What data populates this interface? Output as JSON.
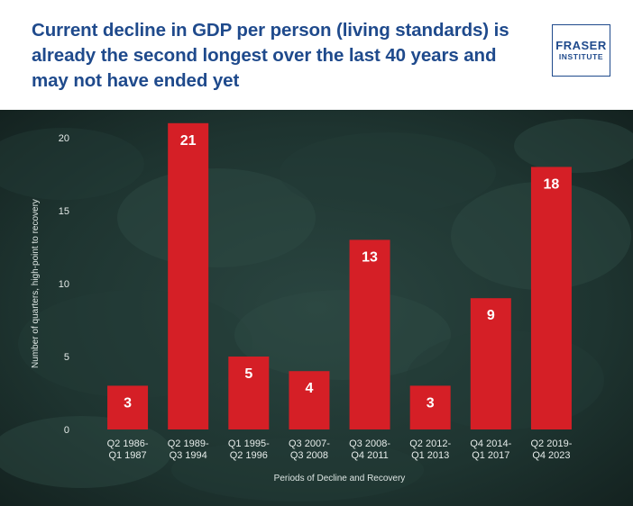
{
  "header": {
    "title": "Current decline in GDP per person (living standards) is already the second longest over the last 40 years and may not have ended yet",
    "logo_line1": "FRASER",
    "logo_line2": "INSTITUTE"
  },
  "colors": {
    "title": "#1f4a8c",
    "bar": "#d51f26",
    "background": "#1b2d2a"
  },
  "chart_data": {
    "type": "bar",
    "categories": [
      [
        "Q2 1986-",
        "Q1 1987"
      ],
      [
        "Q2 1989-",
        "Q3 1994"
      ],
      [
        "Q1 1995-",
        "Q2 1996"
      ],
      [
        "Q3 2007-",
        "Q3 2008"
      ],
      [
        "Q3 2008-",
        "Q4 2011"
      ],
      [
        "Q2 2012-",
        "Q1 2013"
      ],
      [
        "Q4 2014-",
        "Q1 2017"
      ],
      [
        "Q2 2019-",
        "Q4 2023"
      ]
    ],
    "values": [
      3,
      21,
      5,
      4,
      13,
      3,
      9,
      18
    ],
    "data_labels": [
      "3",
      "21",
      "5",
      "4",
      "13",
      "3",
      "9",
      "18"
    ],
    "xlabel": "Periods of Decline and Recovery",
    "ylabel": "Number of quarters, high-point to recovery",
    "ylim": [
      0,
      22
    ],
    "yticks": [
      0,
      5,
      10,
      15,
      20
    ],
    "grid": false,
    "legend": "none"
  }
}
